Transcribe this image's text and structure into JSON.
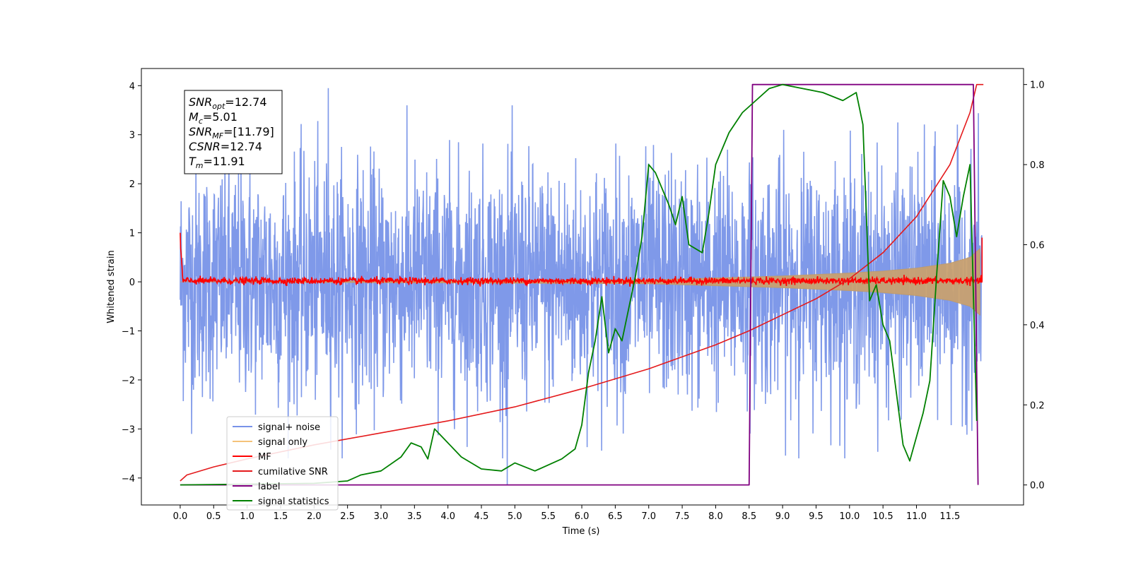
{
  "chart_data": {
    "type": "line",
    "xlabel": "Time (s)",
    "ylabel": "Whitened strain",
    "xlim": [
      -0.58,
      12.6
    ],
    "ylim": [
      -4.55,
      4.35
    ],
    "y2lim": [
      -0.05,
      1.04
    ],
    "x_ticks": [
      "0.0",
      "0.5",
      "1.0",
      "1.5",
      "2.0",
      "2.5",
      "3.0",
      "3.5",
      "4.0",
      "4.5",
      "5.0",
      "5.5",
      "6.0",
      "6.5",
      "7.0",
      "7.5",
      "8.0",
      "8.5",
      "9.0",
      "9.5",
      "10.0",
      "10.5",
      "11.0",
      "11.5"
    ],
    "y_ticks": [
      "−4",
      "−3",
      "−2",
      "−1",
      "0",
      "1",
      "2",
      "3",
      "4"
    ],
    "y2_ticks": [
      "0.0",
      "0.2",
      "0.4",
      "0.6",
      "0.8",
      "1.0"
    ],
    "legend_position": "lower-left",
    "series": [
      {
        "name": "signal+ noise",
        "color": "#7893e8",
        "axis": "left",
        "kind": "noise",
        "x_range": [
          0.0,
          11.98
        ],
        "typical_range": [
          -2.6,
          2.6
        ],
        "extremes": [
          -4.15,
          3.95
        ]
      },
      {
        "name": "signal only",
        "color": "#f5c27a",
        "axis": "left",
        "kind": "chirp-envelope",
        "envelope": {
          "x": [
            0.0,
            7.0,
            8.0,
            9.0,
            10.0,
            10.5,
            11.0,
            11.5,
            11.8,
            11.95
          ],
          "amp": [
            0.0,
            0.04,
            0.08,
            0.12,
            0.18,
            0.22,
            0.28,
            0.38,
            0.5,
            0.68
          ]
        }
      },
      {
        "name": "MF",
        "color": "#ff0000",
        "axis": "left",
        "kind": "mf-noise",
        "x_range": [
          0.0,
          11.98
        ],
        "start_value": 1.0,
        "typical_range": [
          -0.08,
          0.12
        ]
      },
      {
        "name": "cumilative SNR",
        "color": "#e41a1c",
        "axis": "right",
        "x": [
          0.0,
          0.1,
          0.5,
          1.0,
          2.0,
          3.0,
          4.0,
          5.0,
          6.0,
          7.0,
          8.0,
          8.5,
          9.0,
          9.5,
          10.0,
          10.5,
          11.0,
          11.5,
          11.8,
          11.9,
          12.0
        ],
        "y": [
          0.01,
          0.025,
          0.045,
          0.065,
          0.1,
          0.13,
          0.16,
          0.195,
          0.24,
          0.29,
          0.35,
          0.385,
          0.425,
          0.465,
          0.515,
          0.58,
          0.67,
          0.8,
          0.93,
          1.0,
          1.0
        ]
      },
      {
        "name": "label",
        "color": "#800080",
        "axis": "right",
        "x": [
          0.0,
          8.5,
          8.55,
          11.85,
          11.92
        ],
        "y": [
          0.0,
          0.0,
          1.0,
          1.0,
          0.0
        ]
      },
      {
        "name": "signal statistics",
        "color": "#008000",
        "axis": "right",
        "x": [
          0.0,
          1.0,
          2.0,
          2.5,
          2.7,
          3.0,
          3.3,
          3.45,
          3.6,
          3.7,
          3.8,
          4.0,
          4.2,
          4.5,
          4.8,
          5.0,
          5.3,
          5.7,
          5.9,
          6.0,
          6.1,
          6.2,
          6.3,
          6.4,
          6.5,
          6.6,
          6.8,
          6.9,
          7.0,
          7.1,
          7.3,
          7.4,
          7.5,
          7.6,
          7.8,
          7.9,
          8.0,
          8.2,
          8.4,
          8.6,
          8.8,
          9.0,
          9.3,
          9.6,
          9.9,
          10.1,
          10.2,
          10.3,
          10.4,
          10.5,
          10.6,
          10.8,
          10.9,
          11.0,
          11.1,
          11.2,
          11.3,
          11.4,
          11.5,
          11.6,
          11.7,
          11.8,
          11.9
        ],
        "y": [
          0.0,
          0.002,
          0.004,
          0.01,
          0.025,
          0.035,
          0.07,
          0.105,
          0.095,
          0.065,
          0.14,
          0.105,
          0.07,
          0.04,
          0.035,
          0.055,
          0.035,
          0.065,
          0.09,
          0.15,
          0.28,
          0.36,
          0.47,
          0.33,
          0.39,
          0.36,
          0.52,
          0.62,
          0.8,
          0.78,
          0.7,
          0.65,
          0.72,
          0.6,
          0.58,
          0.68,
          0.8,
          0.88,
          0.93,
          0.96,
          0.99,
          1.0,
          0.99,
          0.98,
          0.96,
          0.98,
          0.9,
          0.46,
          0.5,
          0.4,
          0.36,
          0.1,
          0.06,
          0.12,
          0.18,
          0.26,
          0.52,
          0.76,
          0.72,
          0.62,
          0.72,
          0.8,
          0.16
        ]
      }
    ],
    "annotations": {
      "lines": [
        {
          "base": "SNR",
          "sub": "opt",
          "value": "=12.74"
        },
        {
          "base": "M",
          "sub": "c",
          "value": "=5.01"
        },
        {
          "base": "SNR",
          "sub": "MF",
          "value": "=[11.79]"
        },
        {
          "base": "CSNR",
          "sub": "",
          "value": "=12.74"
        },
        {
          "base": "T",
          "sub": "m",
          "value": "=11.91"
        }
      ]
    }
  }
}
